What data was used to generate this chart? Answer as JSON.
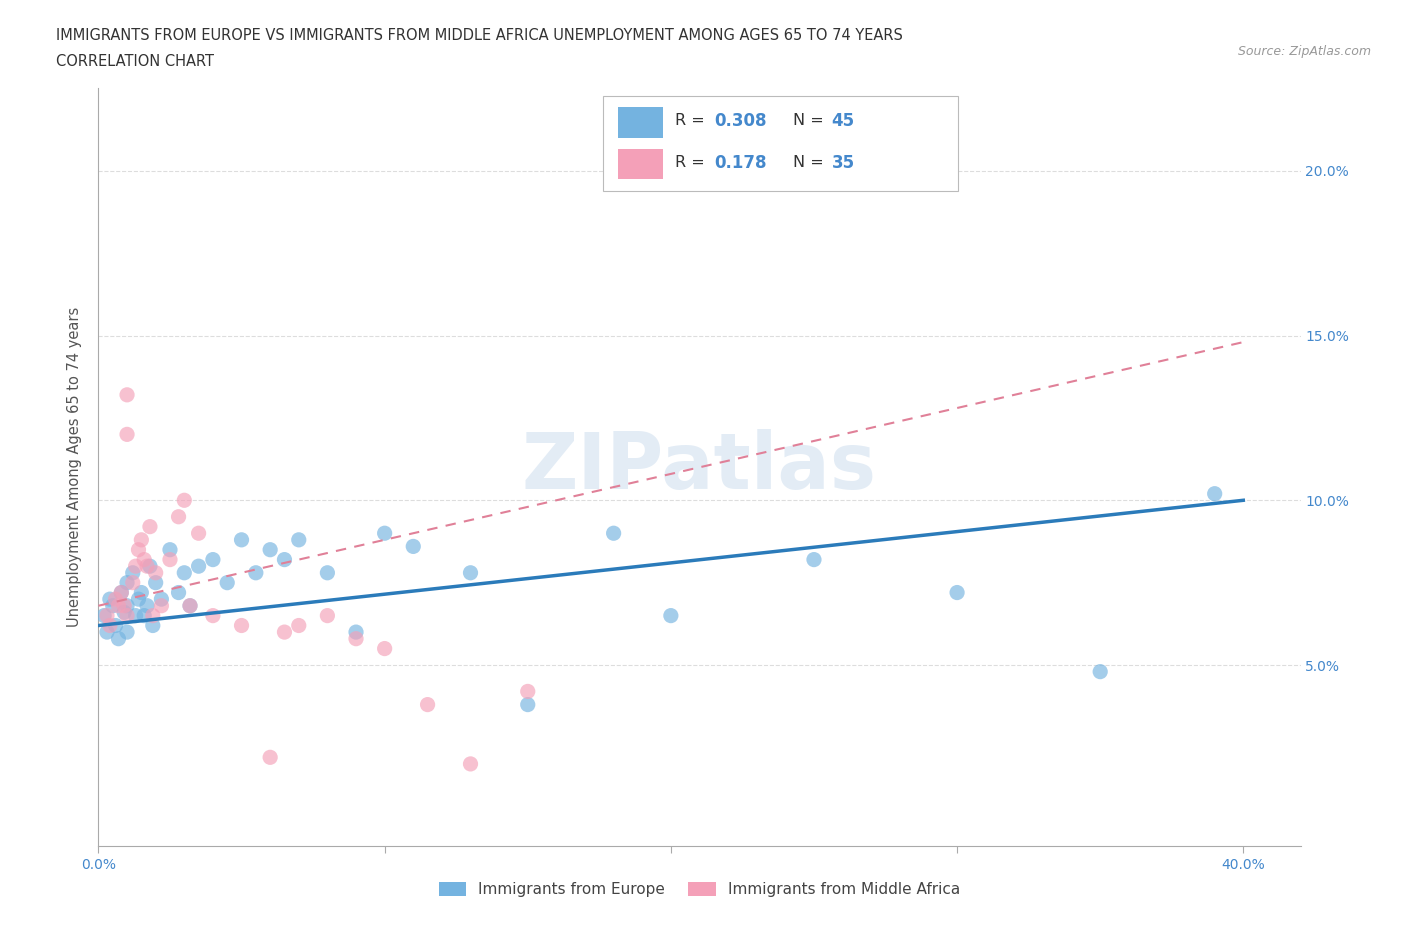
{
  "title_line1": "IMMIGRANTS FROM EUROPE VS IMMIGRANTS FROM MIDDLE AFRICA UNEMPLOYMENT AMONG AGES 65 TO 74 YEARS",
  "title_line2": "CORRELATION CHART",
  "source": "Source: ZipAtlas.com",
  "ylabel": "Unemployment Among Ages 65 to 74 years",
  "xlim": [
    0.0,
    0.42
  ],
  "ylim": [
    -0.005,
    0.225
  ],
  "yticks": [
    0.05,
    0.1,
    0.15,
    0.2
  ],
  "ytick_labels": [
    "5.0%",
    "10.0%",
    "15.0%",
    "20.0%"
  ],
  "R_europe": 0.308,
  "N_europe": 45,
  "R_africa": 0.178,
  "N_africa": 35,
  "europe_color": "#74b3e0",
  "africa_color": "#f4a0b8",
  "europe_line_color": "#2b7bba",
  "africa_line_color": "#e08098",
  "watermark": "ZIPatlas",
  "legend_labels": [
    "Immigrants from Europe",
    "Immigrants from Middle Africa"
  ],
  "europe_scatter_x": [
    0.002,
    0.003,
    0.004,
    0.005,
    0.006,
    0.007,
    0.008,
    0.009,
    0.01,
    0.01,
    0.01,
    0.012,
    0.013,
    0.014,
    0.015,
    0.016,
    0.017,
    0.018,
    0.019,
    0.02,
    0.022,
    0.025,
    0.028,
    0.03,
    0.032,
    0.035,
    0.04,
    0.045,
    0.05,
    0.055,
    0.06,
    0.065,
    0.07,
    0.08,
    0.09,
    0.1,
    0.11,
    0.13,
    0.15,
    0.18,
    0.2,
    0.25,
    0.3,
    0.35,
    0.39
  ],
  "europe_scatter_y": [
    0.065,
    0.06,
    0.07,
    0.068,
    0.062,
    0.058,
    0.072,
    0.066,
    0.075,
    0.068,
    0.06,
    0.078,
    0.065,
    0.07,
    0.072,
    0.065,
    0.068,
    0.08,
    0.062,
    0.075,
    0.07,
    0.085,
    0.072,
    0.078,
    0.068,
    0.08,
    0.082,
    0.075,
    0.088,
    0.078,
    0.085,
    0.082,
    0.088,
    0.078,
    0.06,
    0.09,
    0.086,
    0.078,
    0.038,
    0.09,
    0.065,
    0.082,
    0.072,
    0.048,
    0.102
  ],
  "africa_scatter_x": [
    0.003,
    0.004,
    0.006,
    0.007,
    0.008,
    0.009,
    0.01,
    0.01,
    0.01,
    0.012,
    0.013,
    0.014,
    0.015,
    0.016,
    0.017,
    0.018,
    0.019,
    0.02,
    0.022,
    0.025,
    0.028,
    0.03,
    0.032,
    0.035,
    0.04,
    0.05,
    0.06,
    0.065,
    0.07,
    0.08,
    0.09,
    0.1,
    0.115,
    0.13,
    0.15
  ],
  "africa_scatter_y": [
    0.065,
    0.062,
    0.07,
    0.068,
    0.072,
    0.068,
    0.132,
    0.12,
    0.065,
    0.075,
    0.08,
    0.085,
    0.088,
    0.082,
    0.08,
    0.092,
    0.065,
    0.078,
    0.068,
    0.082,
    0.095,
    0.1,
    0.068,
    0.09,
    0.065,
    0.062,
    0.022,
    0.06,
    0.062,
    0.065,
    0.058,
    0.055,
    0.038,
    0.02,
    0.042
  ],
  "europe_trendline_x": [
    0.0,
    0.4
  ],
  "europe_trendline_y": [
    0.062,
    0.1
  ],
  "africa_trendline_x": [
    0.0,
    0.4
  ],
  "africa_trendline_y": [
    0.068,
    0.148
  ],
  "background_color": "#ffffff",
  "grid_color": "#dddddd",
  "axis_color": "#aaaaaa",
  "tick_label_color": "#4488cc",
  "text_color": "#333333"
}
